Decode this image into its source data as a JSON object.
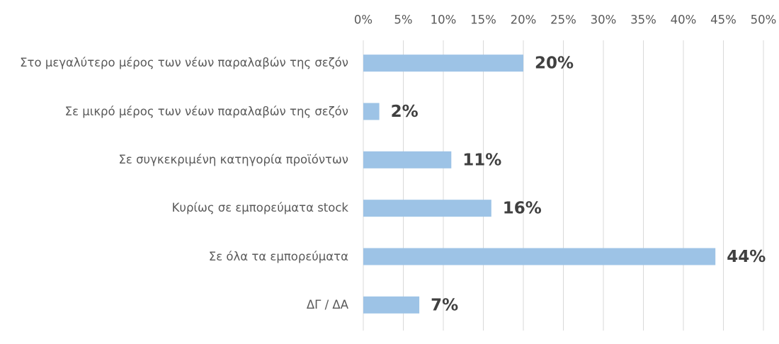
{
  "chart_data": {
    "type": "barh",
    "categories": [
      "Στο μεγαλύτερο μέρος των νέων παραλαβών της σεζόν",
      "Σε μικρό μέρος των νέων παραλαβών της σεζόν",
      "Σε συγκεκριμένη κατηγορία προϊόντων",
      "Κυρίως σε εμπορεύματα stock",
      "Σε όλα τα εμπορεύματα",
      "ΔΓ / ΔΑ"
    ],
    "values": [
      20,
      2,
      11,
      16,
      44,
      7
    ],
    "value_labels": [
      "20%",
      "2%",
      "11%",
      "16%",
      "44%",
      "7%"
    ],
    "color": "#9dc3e6",
    "xlim": [
      0,
      50
    ],
    "xticks": [
      {
        "value": 0,
        "label": "0%"
      },
      {
        "value": 5,
        "label": "5%"
      },
      {
        "value": 10,
        "label": "10%"
      },
      {
        "value": 15,
        "label": "15%"
      },
      {
        "value": 20,
        "label": "20%"
      },
      {
        "value": 25,
        "label": "25%"
      },
      {
        "value": 30,
        "label": "30%"
      },
      {
        "value": 35,
        "label": "35%"
      },
      {
        "value": 40,
        "label": "40%"
      },
      {
        "value": 45,
        "label": "45%"
      },
      {
        "value": 50,
        "label": "50%"
      }
    ],
    "grid": true
  }
}
